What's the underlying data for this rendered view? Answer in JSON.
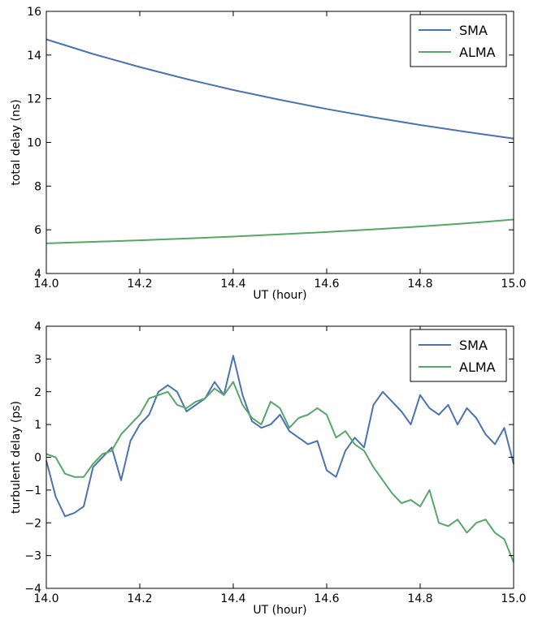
{
  "chart_data": [
    {
      "type": "line",
      "xlabel": "UT (hour)",
      "ylabel": "total delay (ns)",
      "xlim": [
        14.0,
        15.0
      ],
      "ylim": [
        4,
        16
      ],
      "xticks": [
        "14.0",
        "14.2",
        "14.4",
        "14.6",
        "14.8",
        "15.0"
      ],
      "yticks": [
        "4",
        "6",
        "8",
        "10",
        "12",
        "14",
        "16"
      ],
      "legend_position": "top-right",
      "grid": false,
      "series": [
        {
          "name": "SMA",
          "color": "#4c72b0",
          "x": [
            14.0,
            14.1,
            14.2,
            14.3,
            14.4,
            14.5,
            14.6,
            14.7,
            14.8,
            14.9,
            15.0
          ],
          "y": [
            14.72,
            14.05,
            13.45,
            12.9,
            12.4,
            11.95,
            11.53,
            11.15,
            10.8,
            10.48,
            10.18
          ]
        },
        {
          "name": "ALMA",
          "color": "#55a868",
          "x": [
            14.0,
            14.1,
            14.2,
            14.3,
            14.4,
            14.5,
            14.6,
            14.7,
            14.8,
            14.9,
            15.0
          ],
          "y": [
            5.38,
            5.45,
            5.52,
            5.6,
            5.69,
            5.79,
            5.9,
            6.02,
            6.15,
            6.3,
            6.47
          ]
        }
      ]
    },
    {
      "type": "line",
      "xlabel": "UT (hour)",
      "ylabel": "turbulent delay (ps)",
      "xlim": [
        14.0,
        15.0
      ],
      "ylim": [
        -4,
        4
      ],
      "xticks": [
        "14.0",
        "14.2",
        "14.4",
        "14.6",
        "14.8",
        "15.0"
      ],
      "yticks": [
        "−4",
        "−3",
        "−2",
        "−1",
        "0",
        "1",
        "2",
        "3",
        "4"
      ],
      "legend_position": "top-right",
      "grid": false,
      "series": [
        {
          "name": "SMA",
          "color": "#4c72b0",
          "x": [
            14.0,
            14.02,
            14.04,
            14.06,
            14.08,
            14.1,
            14.12,
            14.14,
            14.16,
            14.18,
            14.2,
            14.22,
            14.24,
            14.26,
            14.28,
            14.3,
            14.32,
            14.34,
            14.36,
            14.38,
            14.4,
            14.42,
            14.44,
            14.46,
            14.48,
            14.5,
            14.52,
            14.54,
            14.56,
            14.58,
            14.6,
            14.62,
            14.64,
            14.66,
            14.68,
            14.7,
            14.72,
            14.74,
            14.76,
            14.78,
            14.8,
            14.82,
            14.84,
            14.86,
            14.88,
            14.9,
            14.92,
            14.94,
            14.96,
            14.98,
            15.0
          ],
          "y": [
            -0.1,
            -1.2,
            -1.8,
            -1.7,
            -1.5,
            -0.3,
            0.0,
            0.3,
            -0.7,
            0.5,
            1.0,
            1.3,
            2.0,
            2.2,
            2.0,
            1.4,
            1.6,
            1.8,
            2.3,
            1.9,
            3.1,
            1.9,
            1.1,
            0.9,
            1.0,
            1.3,
            0.8,
            0.6,
            0.4,
            0.5,
            -0.4,
            -0.6,
            0.2,
            0.6,
            0.3,
            1.6,
            2.0,
            1.7,
            1.4,
            1.0,
            1.9,
            1.5,
            1.3,
            1.6,
            1.0,
            1.5,
            1.2,
            0.7,
            0.4,
            0.9,
            -0.2
          ]
        },
        {
          "name": "ALMA",
          "color": "#55a868",
          "x": [
            14.0,
            14.02,
            14.04,
            14.06,
            14.08,
            14.1,
            14.12,
            14.14,
            14.16,
            14.18,
            14.2,
            14.22,
            14.24,
            14.26,
            14.28,
            14.3,
            14.32,
            14.34,
            14.36,
            14.38,
            14.4,
            14.42,
            14.44,
            14.46,
            14.48,
            14.5,
            14.52,
            14.54,
            14.56,
            14.58,
            14.6,
            14.62,
            14.64,
            14.66,
            14.68,
            14.7,
            14.72,
            14.74,
            14.76,
            14.78,
            14.8,
            14.82,
            14.84,
            14.86,
            14.88,
            14.9,
            14.92,
            14.94,
            14.96,
            14.98,
            15.0
          ],
          "y": [
            0.1,
            0.0,
            -0.5,
            -0.6,
            -0.6,
            -0.2,
            0.1,
            0.2,
            0.7,
            1.0,
            1.3,
            1.8,
            1.9,
            2.0,
            1.6,
            1.5,
            1.7,
            1.8,
            2.1,
            1.9,
            2.3,
            1.6,
            1.2,
            1.0,
            1.7,
            1.5,
            0.9,
            1.2,
            1.3,
            1.5,
            1.3,
            0.6,
            0.8,
            0.4,
            0.2,
            -0.3,
            -0.7,
            -1.1,
            -1.4,
            -1.3,
            -1.5,
            -1.0,
            -2.0,
            -2.1,
            -1.9,
            -2.3,
            -2.0,
            -1.9,
            -2.3,
            -2.5,
            -3.2
          ]
        }
      ]
    }
  ]
}
